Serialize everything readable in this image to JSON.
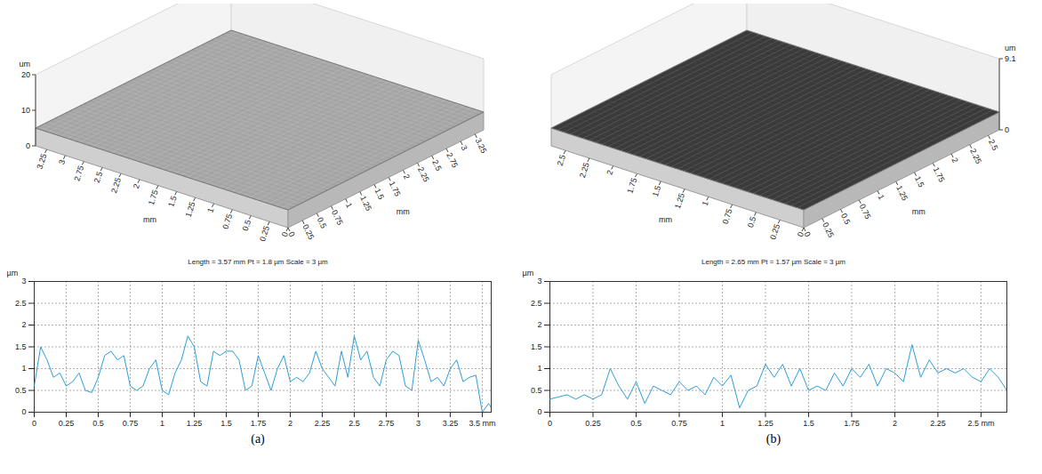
{
  "chart_data": [
    {
      "type": "line",
      "caption": "(a)",
      "title": "Length = 3.57 mm Pt = 1.8 µm Scale = 3 µm",
      "ylabel": "µm",
      "color": "#2a9fd8",
      "grid": true,
      "xlim": [
        0,
        3.57
      ],
      "ylim": [
        0,
        3
      ],
      "xticks": [
        0,
        0.25,
        0.5,
        0.75,
        1,
        1.25,
        1.5,
        1.75,
        2,
        2.25,
        2.5,
        2.75,
        3,
        3.25,
        {
          "value": 3.5,
          "label": "3.5 mm"
        }
      ],
      "yticks": [
        0,
        0.5,
        1,
        1.5,
        2,
        2.5,
        3
      ],
      "x": [
        0,
        0.05,
        0.1,
        0.15,
        0.2,
        0.25,
        0.3,
        0.35,
        0.4,
        0.45,
        0.5,
        0.55,
        0.6,
        0.65,
        0.7,
        0.75,
        0.8,
        0.85,
        0.9,
        0.95,
        1,
        1.05,
        1.1,
        1.15,
        1.2,
        1.25,
        1.3,
        1.35,
        1.4,
        1.45,
        1.5,
        1.55,
        1.6,
        1.65,
        1.7,
        1.75,
        1.8,
        1.85,
        1.9,
        1.95,
        2,
        2.05,
        2.1,
        2.15,
        2.2,
        2.25,
        2.3,
        2.35,
        2.4,
        2.45,
        2.5,
        2.55,
        2.6,
        2.65,
        2.7,
        2.75,
        2.8,
        2.85,
        2.9,
        2.95,
        3,
        3.05,
        3.1,
        3.15,
        3.2,
        3.25,
        3.3,
        3.35,
        3.4,
        3.45,
        3.5,
        3.55,
        3.57
      ],
      "values": [
        0.6,
        1.5,
        1.2,
        0.8,
        0.9,
        0.6,
        0.7,
        0.9,
        0.5,
        0.45,
        0.8,
        1.3,
        1.4,
        1.2,
        1.3,
        0.6,
        0.5,
        0.6,
        1.0,
        1.2,
        0.5,
        0.4,
        0.9,
        1.2,
        1.75,
        1.5,
        0.7,
        0.6,
        1.4,
        1.3,
        1.4,
        1.4,
        1.2,
        0.5,
        0.6,
        1.3,
        0.9,
        0.5,
        1.0,
        1.3,
        0.7,
        0.8,
        0.7,
        0.9,
        1.4,
        1.0,
        0.8,
        0.6,
        1.4,
        0.8,
        1.75,
        1.2,
        1.4,
        0.8,
        0.6,
        1.2,
        1.4,
        1.3,
        0.6,
        0.5,
        1.65,
        1.2,
        0.7,
        0.8,
        0.6,
        1.0,
        1.2,
        0.7,
        0.8,
        0.85,
        0.0,
        0.2,
        0.1
      ],
      "surface": {
        "color": "#a9a9a9",
        "xlabel": "mm",
        "ylabel": "mm",
        "zlabel": "um",
        "xlim": [
          0,
          3.4
        ],
        "ylim": [
          0,
          3.4
        ],
        "zlim": [
          0,
          20
        ],
        "xticks": [
          0,
          0.25,
          0.5,
          0.75,
          1,
          1.25,
          1.5,
          1.75,
          2,
          2.25,
          2.5,
          2.75,
          3,
          3.25
        ],
        "yticks": [
          0,
          0.25,
          0.5,
          0.75,
          1,
          1.25,
          1.5,
          1.75,
          2,
          2.25,
          2.5,
          2.75,
          3,
          3.25
        ],
        "zticks": [
          0,
          10,
          20
        ]
      }
    },
    {
      "type": "line",
      "caption": "(b)",
      "title": "Length = 2.65 mm Pt = 1.57 µm Scale = 3 µm",
      "ylabel": "µm",
      "color": "#2a9fd8",
      "grid": true,
      "xlim": [
        0,
        2.65
      ],
      "ylim": [
        0,
        3
      ],
      "xticks": [
        0,
        0.25,
        0.5,
        0.75,
        1,
        1.25,
        1.5,
        1.75,
        2,
        2.25,
        {
          "value": 2.5,
          "label": "2.5 mm"
        }
      ],
      "yticks": [
        0,
        0.5,
        1,
        1.5,
        2,
        2.5,
        3
      ],
      "x": [
        0,
        0.05,
        0.1,
        0.15,
        0.2,
        0.25,
        0.3,
        0.35,
        0.4,
        0.45,
        0.5,
        0.55,
        0.6,
        0.65,
        0.7,
        0.75,
        0.8,
        0.85,
        0.9,
        0.95,
        1,
        1.05,
        1.1,
        1.15,
        1.2,
        1.25,
        1.3,
        1.35,
        1.4,
        1.45,
        1.5,
        1.55,
        1.6,
        1.65,
        1.7,
        1.75,
        1.8,
        1.85,
        1.9,
        1.95,
        2,
        2.05,
        2.1,
        2.15,
        2.2,
        2.25,
        2.3,
        2.35,
        2.4,
        2.45,
        2.5,
        2.55,
        2.6,
        2.65
      ],
      "values": [
        0.3,
        0.35,
        0.4,
        0.3,
        0.4,
        0.3,
        0.4,
        1.0,
        0.6,
        0.3,
        0.7,
        0.2,
        0.6,
        0.5,
        0.4,
        0.7,
        0.5,
        0.6,
        0.4,
        0.8,
        0.6,
        0.85,
        0.1,
        0.5,
        0.6,
        1.1,
        0.8,
        1.1,
        0.6,
        1.0,
        0.5,
        0.6,
        0.5,
        0.9,
        0.6,
        1.0,
        0.8,
        1.1,
        0.6,
        1.0,
        0.9,
        0.7,
        1.55,
        0.8,
        1.2,
        0.9,
        1.0,
        0.9,
        1.0,
        0.8,
        0.7,
        1.0,
        0.8,
        0.5
      ],
      "surface": {
        "color": "#3c3c3c",
        "xlabel": "mm",
        "ylabel": "mm",
        "zlabel": "um",
        "xlim": [
          0,
          2.65
        ],
        "ylim": [
          0,
          2.65
        ],
        "zlim": [
          0,
          9.1
        ],
        "xticks": [
          0,
          0.25,
          0.5,
          0.75,
          1,
          1.25,
          1.5,
          1.75,
          2,
          2.25,
          2.5
        ],
        "yticks": [
          0,
          0.25,
          0.5,
          0.75,
          1,
          1.25,
          1.5,
          1.75,
          2,
          2.25,
          2.5
        ],
        "zticks": [
          0,
          9.1
        ]
      }
    }
  ]
}
